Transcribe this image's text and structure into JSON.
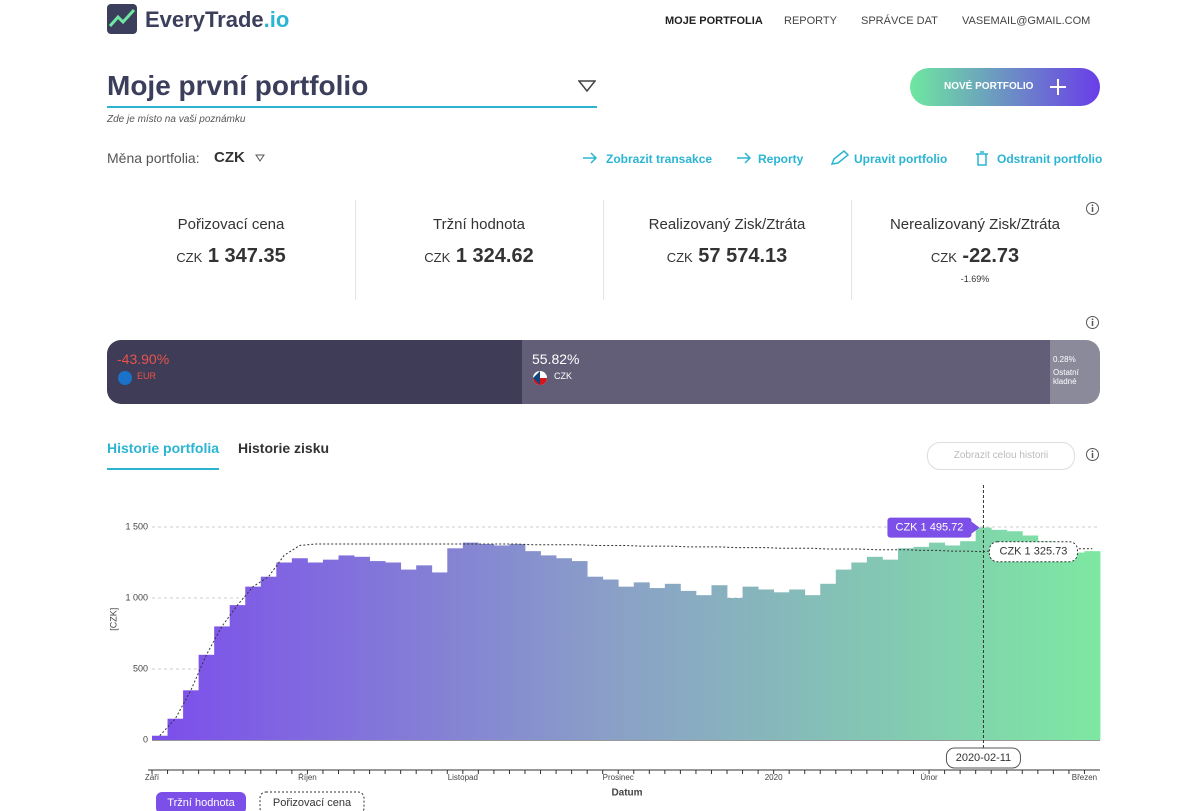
{
  "header": {
    "logo": "EveryTrade",
    "logo_suffix": ".io",
    "nav": [
      "MOJE PORTFOLIA",
      "REPORTY",
      "SPRÁVCE DAT",
      "VASEMAIL@GMAIL.COM"
    ]
  },
  "portfolio": {
    "title": "Moje první portfolio",
    "note": "Zde je místo na vaši poznámku",
    "new_button": "NOVÉ PORTFOLIO",
    "currency_label": "Měna portfolia:",
    "currency": "CZK",
    "actions": [
      "Zobrazit transakce",
      "Reporty",
      "Upravit portfolio",
      "Odstranit portfolio"
    ]
  },
  "stats": [
    {
      "label": "Pořizovací cena",
      "unit": "CZK",
      "value": "1 347.35"
    },
    {
      "label": "Tržní hodnota",
      "unit": "CZK",
      "value": "1 324.62"
    },
    {
      "label": "Realizovaný Zisk/Ztráta",
      "unit": "CZK",
      "value": "57 574.13"
    },
    {
      "label": "Nerealizovaný Zisk/Ztráta",
      "unit": "CZK",
      "value": "-22.73",
      "change": "-1.69%"
    }
  ],
  "currency_bar": [
    {
      "percent": "-43.90%",
      "name": "EUR"
    },
    {
      "percent": "55.82%",
      "name": "CZK"
    },
    {
      "percent": "0.28%",
      "name": "Ostatní kladné"
    }
  ],
  "tabs": [
    "Historie portfolia",
    "Historie zisku"
  ],
  "history_button": "Zobrazit celou historii",
  "chart_data": {
    "type": "step-area",
    "y_label": "[CZK]",
    "x_label": "Datum",
    "categories": [
      "Září",
      null,
      null,
      null,
      null,
      null,
      null,
      null,
      null,
      null,
      "Říjen",
      null,
      null,
      null,
      null,
      null,
      null,
      null,
      null,
      null,
      "Listopad",
      null,
      null,
      null,
      null,
      null,
      null,
      null,
      null,
      null,
      "Prosinec",
      null,
      null,
      null,
      null,
      null,
      null,
      null,
      null,
      null,
      "2020",
      null,
      null,
      null,
      null,
      null,
      null,
      null,
      null,
      null,
      "Únor",
      null,
      null,
      null,
      null,
      null,
      null,
      null,
      null,
      null,
      "Březen"
    ],
    "series": [
      {
        "name": "Tržní hodnota",
        "color": "#7b4fe8",
        "gradient": [
          "#7c4dec",
          "#8aa2c6",
          "#7de8a2"
        ],
        "values": [
          30,
          150,
          350,
          600,
          800,
          950,
          1080,
          1150,
          1250,
          1280,
          1250,
          1270,
          1300,
          1290,
          1260,
          1250,
          1200,
          1230,
          1180,
          1350,
          1390,
          1380,
          1370,
          1380,
          1330,
          1300,
          1280,
          1260,
          1150,
          1130,
          1080,
          1110,
          1070,
          1100,
          1050,
          1020,
          1090,
          1000,
          1080,
          1060,
          1040,
          1060,
          1020,
          1100,
          1200,
          1250,
          1290,
          1270,
          1350,
          1360,
          1390,
          1370,
          1400,
          1495.72,
          1480,
          1470,
          1440,
          1400,
          1330,
          1320,
          1330
        ],
        "value_labels": [
          null,
          null,
          null,
          null,
          null,
          null,
          null,
          null,
          null,
          null,
          null,
          null,
          null,
          null,
          null,
          null,
          null,
          null,
          null,
          null,
          null,
          null,
          null,
          null,
          null,
          null,
          null,
          null,
          null,
          null,
          null,
          null,
          null,
          null,
          null,
          null,
          null,
          null,
          null,
          null,
          null,
          null,
          null,
          null,
          null,
          null,
          null,
          null,
          null,
          null,
          null,
          null,
          null,
          "CZK 1 495.72",
          null,
          null,
          null,
          null,
          null,
          null,
          null
        ]
      },
      {
        "name": "Pořizovací cena",
        "color": "#333333",
        "dashed": true,
        "values": [
          30,
          150,
          350,
          600,
          800,
          950,
          1080,
          1150,
          1300,
          1370,
          1380,
          1380,
          1380,
          1380,
          1380,
          1380,
          1380,
          1380,
          1380,
          1380,
          1380,
          1380,
          1380,
          1380,
          1375,
          1375,
          1375,
          1375,
          1370,
          1370,
          1370,
          1365,
          1365,
          1365,
          1360,
          1360,
          1360,
          1355,
          1355,
          1355,
          1350,
          1350,
          1350,
          1345,
          1345,
          1345,
          1340,
          1340,
          1340,
          1335,
          1335,
          1330,
          1330,
          1325.73,
          1340,
          1345,
          1350,
          1350,
          1350,
          1347,
          1347.35
        ],
        "value_labels": [
          null,
          null,
          null,
          null,
          null,
          null,
          null,
          null,
          null,
          null,
          null,
          null,
          null,
          null,
          null,
          null,
          null,
          null,
          null,
          null,
          null,
          null,
          null,
          null,
          null,
          null,
          null,
          null,
          null,
          null,
          null,
          null,
          null,
          null,
          null,
          null,
          null,
          null,
          null,
          null,
          null,
          null,
          null,
          null,
          null,
          null,
          null,
          null,
          null,
          null,
          null,
          null,
          null,
          "CZK 1 325.73",
          null,
          null,
          null,
          null,
          null,
          null,
          null
        ]
      }
    ],
    "annotations": [
      {
        "text": "2020-02-11"
      }
    ],
    "ylim": [
      0,
      1700
    ],
    "yticks": [
      0,
      500,
      {
        "value": 1000,
        "label": "1 000"
      },
      {
        "value": 1500,
        "label": "1 500"
      }
    ],
    "grid": true
  }
}
